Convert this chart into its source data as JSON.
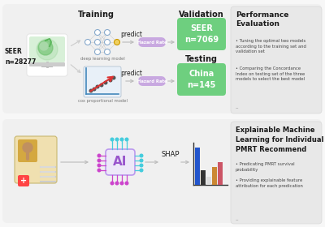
{
  "bg_color": "#f7f7f7",
  "green": "#6ecf7f",
  "light_gray_box": "#ebebeb",
  "hazard_purple": "#c8a8e0",
  "text_dark": "#1a1a1a",
  "text_gray": "#555555",
  "text_small": "#444444",
  "arrow_color": "#bbbbbb",
  "training_title": "Training",
  "validation_title": "Validation",
  "testing_title": "Testing",
  "seer_label": "SEER\nn=28277",
  "seer_box_label": "SEER\nn=7069",
  "china_box_label": "China\nn=145",
  "predict_label": "predict",
  "hazard_rate_label": "Hazard Rate",
  "deep_model_label": "deep learning model",
  "cox_model_label": "cox proportional model",
  "shap_label": "SHAP",
  "performance_title": "Performance\nEvaluation",
  "performance_bullet1": "Tuning the optimal two models\naccording to the training set and\nvalidation set",
  "performance_bullet2": "Comparing the Concordance\nIndex on testing set of the three\nmodels to select the best model",
  "explainable_title": "Explainable Machine\nLearning for Individual\nPMRT Recommend",
  "explainable_bullet1": "Predicating PMRT survival\nprobability",
  "explainable_bullet2": "Providing explainable feature\nattribution for each predication"
}
